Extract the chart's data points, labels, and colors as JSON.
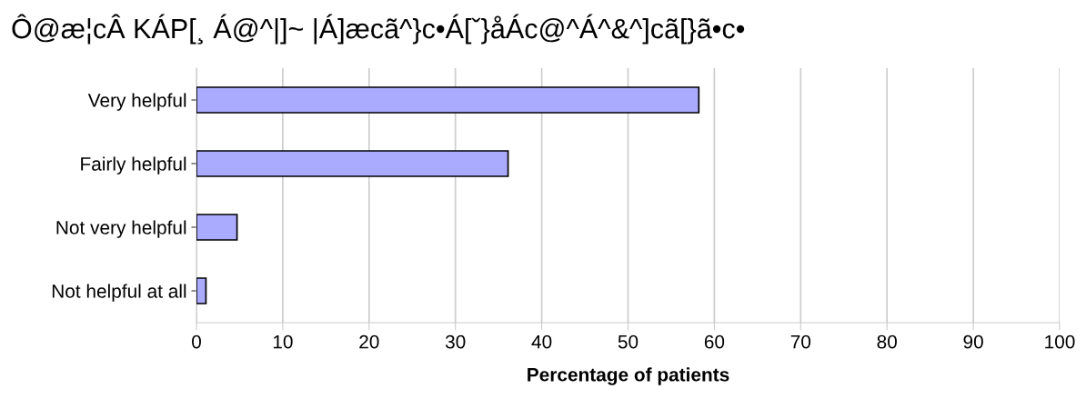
{
  "chart_data": {
    "type": "bar",
    "orientation": "horizontal",
    "title": "Ô@æ¦cÂ KÁP[¸ Á@^|]~ |Á]æcã^}c•Á[ˇ}åÁc@^Á^&^]cã[}ã•c•",
    "xlabel": "Percentage of patients",
    "categories": [
      "Very helpful",
      "Fairly helpful",
      "Not very helpful",
      "Not helpful at all"
    ],
    "values": [
      58.2,
      36.1,
      4.7,
      1.1
    ],
    "color": "#aaaaff",
    "xlim": [
      0,
      100
    ],
    "xticks": [
      0,
      10,
      20,
      30,
      40,
      50,
      60,
      70,
      80,
      90,
      100
    ],
    "grid": "x"
  }
}
